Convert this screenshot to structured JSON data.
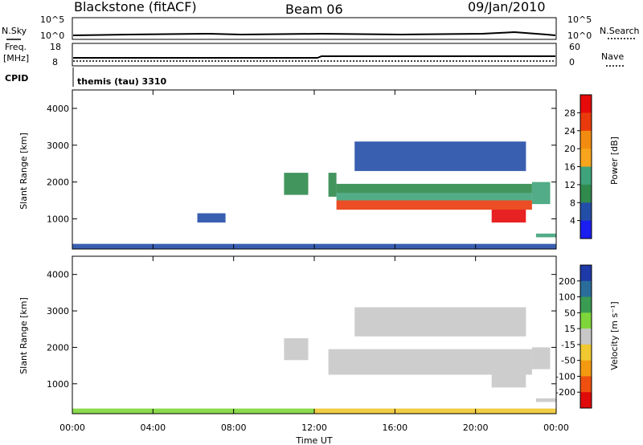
{
  "header": {
    "station": "Blackstone (fitACF)",
    "beam": "Beam 06",
    "date": "09/Jan/2010"
  },
  "status_panels": {
    "nsky_label": "N.Sky",
    "nsearch_label": "N.Search",
    "noise_left_ticks": [
      "10^5",
      "10^0"
    ],
    "noise_right_ticks": [
      "10^5",
      "10^0"
    ],
    "freq_label_top": "Freq.",
    "freq_label_bottom": "[MHz]",
    "freq_ticks": [
      "18",
      "8"
    ],
    "nave_label": "Nave",
    "nave_ticks": [
      "60",
      "0"
    ],
    "cpid_label": "CPID",
    "cpid_text": "themis (tau) 3310"
  },
  "colors": {
    "power_scale": [
      "#1b1ef0",
      "#234ea8",
      "#2f8a4c",
      "#3ea37a",
      "#f7a51c",
      "#f28c10",
      "#ea3a0c",
      "#e60a0a"
    ],
    "velocity_scale": [
      "#1e3aa8",
      "#2a6d9a",
      "#3a9c52",
      "#7ed63a",
      "#c8c8c8",
      "#f0c830",
      "#f39a10",
      "#ef5010",
      "#e00a0a"
    ]
  },
  "chart_data": [
    {
      "type": "heatmap",
      "title": "",
      "xlabel": "Time UT",
      "ylabel": "Slant Range [km]",
      "x_ticks": [
        "00:00",
        "04:00",
        "08:00",
        "12:00",
        "16:00",
        "20:00",
        "00:00"
      ],
      "y_ticks": [
        "1000",
        "2000",
        "3000",
        "4000"
      ],
      "xlim_hours": [
        0,
        24
      ],
      "ylim_km": [
        180,
        4500
      ],
      "colorbar": {
        "label": "Power [dB]",
        "ticks": [
          "4",
          "8",
          "12",
          "16",
          "20",
          "24",
          "28"
        ],
        "range": [
          0,
          30
        ]
      },
      "regions": [
        {
          "t0": 0.0,
          "t1": 24.0,
          "r0": 190,
          "r1": 320,
          "value": 4
        },
        {
          "t0": 10.5,
          "t1": 11.7,
          "r0": 1650,
          "r1": 2250,
          "value": 10
        },
        {
          "t0": 12.7,
          "t1": 13.1,
          "r0": 1600,
          "r1": 2250,
          "value": 8
        },
        {
          "t0": 13.1,
          "t1": 22.8,
          "r0": 1700,
          "r1": 1950,
          "value": 10
        },
        {
          "t0": 13.1,
          "t1": 22.8,
          "r0": 1500,
          "r1": 1700,
          "value": 14
        },
        {
          "t0": 13.1,
          "t1": 22.8,
          "r0": 1250,
          "r1": 1500,
          "value": 24
        },
        {
          "t0": 20.8,
          "t1": 22.5,
          "r0": 900,
          "r1": 1250,
          "value": 27
        },
        {
          "t0": 22.8,
          "t1": 23.7,
          "r0": 1400,
          "r1": 2000,
          "value": 12
        },
        {
          "t0": 23.0,
          "t1": 24.0,
          "r0": 500,
          "r1": 600,
          "value": 12
        },
        {
          "t0": 6.2,
          "t1": 7.6,
          "r0": 900,
          "r1": 1150,
          "value": 6
        },
        {
          "t0": 14.0,
          "t1": 22.5,
          "r0": 2300,
          "r1": 3100,
          "value": 6
        }
      ]
    },
    {
      "type": "heatmap",
      "title": "",
      "xlabel": "Time UT",
      "ylabel": "Slant Range [km]",
      "x_ticks": [
        "00:00",
        "04:00",
        "08:00",
        "12:00",
        "16:00",
        "20:00",
        "00:00"
      ],
      "y_ticks": [
        "1000",
        "2000",
        "3000",
        "4000"
      ],
      "xlim_hours": [
        0,
        24
      ],
      "ylim_km": [
        180,
        4500
      ],
      "colorbar": {
        "label": "Velocity [m s⁻¹]",
        "ticks": [
          "200",
          "100",
          "50",
          "15",
          "-15",
          "-50",
          "-100",
          "-200"
        ],
        "range": [
          -250,
          250
        ]
      },
      "regions": [
        {
          "t0": 0.0,
          "t1": 12.0,
          "r0": 190,
          "r1": 320,
          "value": 60
        },
        {
          "t0": 12.0,
          "t1": 24.0,
          "r0": 190,
          "r1": 320,
          "value": -30
        },
        {
          "t0": 10.5,
          "t1": 11.7,
          "r0": 1650,
          "r1": 2250,
          "value": 0
        },
        {
          "t0": 12.7,
          "t1": 22.8,
          "r0": 1250,
          "r1": 1950,
          "value": 0
        },
        {
          "t0": 20.8,
          "t1": 22.5,
          "r0": 900,
          "r1": 1250,
          "value": 0
        },
        {
          "t0": 22.8,
          "t1": 23.7,
          "r0": 1400,
          "r1": 2000,
          "value": 0
        },
        {
          "t0": 23.0,
          "t1": 24.0,
          "r0": 500,
          "r1": 600,
          "value": 0
        },
        {
          "t0": 14.0,
          "t1": 22.5,
          "r0": 2300,
          "r1": 3100,
          "value": 0
        }
      ]
    }
  ]
}
